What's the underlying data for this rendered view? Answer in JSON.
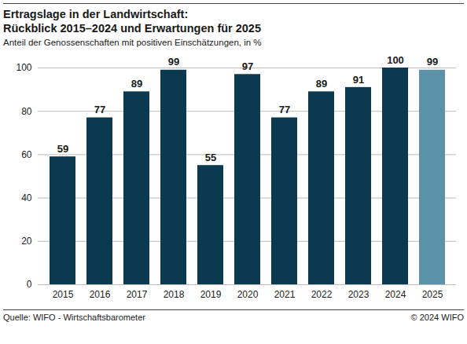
{
  "chart_data": {
    "type": "bar",
    "title": "Ertragslage in der Landwirtschaft:\nRückblick 2015–2024 und Erwartungen für 2025",
    "subtitle": "Anteil der Genossenschaften mit positiven Einschätzungen, in %",
    "categories": [
      "2015",
      "2016",
      "2017",
      "2018",
      "2019",
      "2020",
      "2021",
      "2022",
      "2023",
      "2024",
      "2025"
    ],
    "values": [
      59,
      77,
      89,
      99,
      55,
      97,
      77,
      89,
      91,
      100,
      99
    ],
    "colors": [
      "#0b3a50",
      "#0b3a50",
      "#0b3a50",
      "#0b3a50",
      "#0b3a50",
      "#0b3a50",
      "#0b3a50",
      "#0b3a50",
      "#0b3a50",
      "#0b3a50",
      "#5b92a8"
    ],
    "ylim": [
      0,
      100
    ],
    "yticks": [
      0,
      20,
      40,
      60,
      80,
      100
    ],
    "grid": true,
    "data_labels": true,
    "source": "Quelle: WIFO - Wirtschaftsbarometer",
    "copyright": "© 2024 WIFO"
  }
}
